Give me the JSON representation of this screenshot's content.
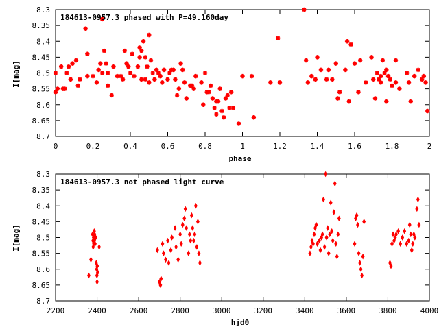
{
  "chart_data": [
    {
      "type": "scatter",
      "title": "184613-0957.3 phased with P=49.160day",
      "xlabel": "phase",
      "ylabel": "I[mag]",
      "xlim": [
        0,
        2
      ],
      "ylim": [
        8.7,
        8.3
      ],
      "y_inverted": true,
      "grid": false,
      "legend": "none",
      "marker": "star",
      "color": "#ff0000",
      "x_ticks": [
        "0",
        "0.2",
        "0.4",
        "0.6",
        "0.8",
        "1",
        "1.2",
        "1.4",
        "1.6",
        "1.8",
        "2"
      ],
      "y_ticks": [
        "8.3",
        "8.35",
        "8.4",
        "8.45",
        "8.5",
        "8.55",
        "8.6",
        "8.65",
        "8.7"
      ],
      "points": [
        [
          0.0,
          8.56
        ],
        [
          0.0,
          8.5
        ],
        [
          0.01,
          8.55
        ],
        [
          0.03,
          8.48
        ],
        [
          0.04,
          8.55
        ],
        [
          0.05,
          8.55
        ],
        [
          0.06,
          8.5
        ],
        [
          0.07,
          8.48
        ],
        [
          0.08,
          8.52
        ],
        [
          0.09,
          8.47
        ],
        [
          0.11,
          8.46
        ],
        [
          0.12,
          8.54
        ],
        [
          0.13,
          8.52
        ],
        [
          0.16,
          8.36
        ],
        [
          0.17,
          8.51
        ],
        [
          0.17,
          8.44
        ],
        [
          0.2,
          8.51
        ],
        [
          0.22,
          8.53
        ],
        [
          0.23,
          8.49
        ],
        [
          0.24,
          8.47
        ],
        [
          0.25,
          8.33
        ],
        [
          0.25,
          8.5
        ],
        [
          0.26,
          8.43
        ],
        [
          0.27,
          8.47
        ],
        [
          0.28,
          8.54
        ],
        [
          0.28,
          8.5
        ],
        [
          0.3,
          8.57
        ],
        [
          0.31,
          8.48
        ],
        [
          0.33,
          8.51
        ],
        [
          0.35,
          8.51
        ],
        [
          0.36,
          8.52
        ],
        [
          0.37,
          8.43
        ],
        [
          0.38,
          8.47
        ],
        [
          0.39,
          8.48
        ],
        [
          0.4,
          8.5
        ],
        [
          0.41,
          8.44
        ],
        [
          0.42,
          8.51
        ],
        [
          0.44,
          8.48
        ],
        [
          0.45,
          8.45
        ],
        [
          0.45,
          8.42
        ],
        [
          0.46,
          8.43
        ],
        [
          0.46,
          8.52
        ],
        [
          0.47,
          8.4
        ],
        [
          0.48,
          8.45
        ],
        [
          0.48,
          8.52
        ],
        [
          0.49,
          8.48
        ],
        [
          0.5,
          8.53
        ],
        [
          0.5,
          8.38
        ],
        [
          0.51,
          8.46
        ],
        [
          0.52,
          8.5
        ],
        [
          0.53,
          8.52
        ],
        [
          0.54,
          8.49
        ],
        [
          0.55,
          8.5
        ],
        [
          0.56,
          8.51
        ],
        [
          0.57,
          8.53
        ],
        [
          0.58,
          8.49
        ],
        [
          0.6,
          8.52
        ],
        [
          0.61,
          8.5
        ],
        [
          0.62,
          8.49
        ],
        [
          0.63,
          8.49
        ],
        [
          0.64,
          8.52
        ],
        [
          0.65,
          8.57
        ],
        [
          0.66,
          8.55
        ],
        [
          0.67,
          8.47
        ],
        [
          0.68,
          8.49
        ],
        [
          0.69,
          8.53
        ],
        [
          0.7,
          8.58
        ],
        [
          0.72,
          8.54
        ],
        [
          0.73,
          8.54
        ],
        [
          0.74,
          8.55
        ],
        [
          0.75,
          8.51
        ],
        [
          0.78,
          8.53
        ],
        [
          0.79,
          8.6
        ],
        [
          0.8,
          8.5
        ],
        [
          0.81,
          8.56
        ],
        [
          0.82,
          8.56
        ],
        [
          0.83,
          8.54
        ],
        [
          0.84,
          8.58
        ],
        [
          0.85,
          8.61
        ],
        [
          0.86,
          8.59
        ],
        [
          0.86,
          8.63
        ],
        [
          0.87,
          8.59
        ],
        [
          0.88,
          8.55
        ],
        [
          0.89,
          8.62
        ],
        [
          0.9,
          8.64
        ],
        [
          0.91,
          8.58
        ],
        [
          0.92,
          8.57
        ],
        [
          0.93,
          8.61
        ],
        [
          0.94,
          8.56
        ],
        [
          0.95,
          8.61
        ],
        [
          0.98,
          8.66
        ],
        [
          1.0,
          8.51
        ],
        [
          1.05,
          8.51
        ],
        [
          1.06,
          8.64
        ],
        [
          1.15,
          8.53
        ],
        [
          1.19,
          8.39
        ],
        [
          1.2,
          8.53
        ],
        [
          1.33,
          8.3
        ],
        [
          1.34,
          8.46
        ],
        [
          1.35,
          8.53
        ],
        [
          1.37,
          8.51
        ],
        [
          1.39,
          8.52
        ],
        [
          1.4,
          8.45
        ],
        [
          1.42,
          8.49
        ],
        [
          1.45,
          8.52
        ],
        [
          1.46,
          8.49
        ],
        [
          1.48,
          8.52
        ],
        [
          1.5,
          8.47
        ],
        [
          1.51,
          8.58
        ],
        [
          1.52,
          8.56
        ],
        [
          1.55,
          8.49
        ],
        [
          1.56,
          8.4
        ],
        [
          1.57,
          8.59
        ],
        [
          1.58,
          8.41
        ],
        [
          1.6,
          8.47
        ],
        [
          1.62,
          8.56
        ],
        [
          1.63,
          8.46
        ],
        [
          1.66,
          8.53
        ],
        [
          1.69,
          8.45
        ],
        [
          1.7,
          8.52
        ],
        [
          1.71,
          8.58
        ],
        [
          1.72,
          8.5
        ],
        [
          1.73,
          8.52
        ],
        [
          1.74,
          8.51
        ],
        [
          1.74,
          8.53
        ],
        [
          1.75,
          8.46
        ],
        [
          1.76,
          8.5
        ],
        [
          1.77,
          8.49
        ],
        [
          1.77,
          8.59
        ],
        [
          1.78,
          8.51
        ],
        [
          1.79,
          8.52
        ],
        [
          1.8,
          8.54
        ],
        [
          1.82,
          8.53
        ],
        [
          1.82,
          8.46
        ],
        [
          1.84,
          8.55
        ],
        [
          1.88,
          8.5
        ],
        [
          1.89,
          8.53
        ],
        [
          1.9,
          8.59
        ],
        [
          1.92,
          8.51
        ],
        [
          1.94,
          8.49
        ],
        [
          1.96,
          8.52
        ],
        [
          1.97,
          8.51
        ],
        [
          1.98,
          8.53
        ],
        [
          1.99,
          8.62
        ]
      ]
    },
    {
      "type": "scatter",
      "title": "184613-0957.3 not phased light curve",
      "xlabel": "hjd0",
      "ylabel": "I[mag]",
      "xlim": [
        2200,
        4000
      ],
      "ylim": [
        8.7,
        8.3
      ],
      "y_inverted": true,
      "grid": false,
      "legend": "none",
      "marker": "diamond",
      "color": "#ff0000",
      "x_ticks": [
        "2200",
        "2400",
        "2600",
        "2800",
        "3000",
        "3200",
        "3400",
        "3600",
        "3800",
        "4000"
      ],
      "y_ticks": [
        "8.3",
        "8.35",
        "8.4",
        "8.45",
        "8.5",
        "8.55",
        "8.6",
        "8.65",
        "8.7"
      ],
      "points": [
        [
          2360,
          8.62
        ],
        [
          2370,
          8.57
        ],
        [
          2378,
          8.49
        ],
        [
          2380,
          8.51
        ],
        [
          2381,
          8.53
        ],
        [
          2383,
          8.5
        ],
        [
          2384,
          8.52
        ],
        [
          2386,
          8.48
        ],
        [
          2387,
          8.51
        ],
        [
          2388,
          8.49
        ],
        [
          2390,
          8.52
        ],
        [
          2393,
          8.5
        ],
        [
          2396,
          8.58
        ],
        [
          2398,
          8.6
        ],
        [
          2399,
          8.62
        ],
        [
          2400,
          8.64
        ],
        [
          2401,
          8.59
        ],
        [
          2403,
          8.61
        ],
        [
          2410,
          8.53
        ],
        [
          2690,
          8.54
        ],
        [
          2700,
          8.64
        ],
        [
          2705,
          8.65
        ],
        [
          2708,
          8.63
        ],
        [
          2715,
          8.52
        ],
        [
          2720,
          8.55
        ],
        [
          2730,
          8.57
        ],
        [
          2740,
          8.51
        ],
        [
          2745,
          8.58
        ],
        [
          2755,
          8.54
        ],
        [
          2760,
          8.5
        ],
        [
          2775,
          8.47
        ],
        [
          2780,
          8.53
        ],
        [
          2790,
          8.57
        ],
        [
          2800,
          8.49
        ],
        [
          2805,
          8.52
        ],
        [
          2812,
          8.46
        ],
        [
          2820,
          8.44
        ],
        [
          2825,
          8.41
        ],
        [
          2830,
          8.47
        ],
        [
          2840,
          8.55
        ],
        [
          2845,
          8.49
        ],
        [
          2850,
          8.51
        ],
        [
          2855,
          8.43
        ],
        [
          2860,
          8.47
        ],
        [
          2865,
          8.51
        ],
        [
          2870,
          8.49
        ],
        [
          2875,
          8.4
        ],
        [
          2880,
          8.53
        ],
        [
          2885,
          8.45
        ],
        [
          2890,
          8.55
        ],
        [
          2895,
          8.58
        ],
        [
          3425,
          8.55
        ],
        [
          3430,
          8.53
        ],
        [
          3435,
          8.51
        ],
        [
          3440,
          8.52
        ],
        [
          3445,
          8.49
        ],
        [
          3450,
          8.47
        ],
        [
          3455,
          8.46
        ],
        [
          3460,
          8.52
        ],
        [
          3470,
          8.51
        ],
        [
          3475,
          8.54
        ],
        [
          3480,
          8.5
        ],
        [
          3485,
          8.49
        ],
        [
          3490,
          8.38
        ],
        [
          3495,
          8.53
        ],
        [
          3500,
          8.3
        ],
        [
          3505,
          8.5
        ],
        [
          3510,
          8.47
        ],
        [
          3515,
          8.55
        ],
        [
          3520,
          8.49
        ],
        [
          3525,
          8.39
        ],
        [
          3530,
          8.48
        ],
        [
          3535,
          8.51
        ],
        [
          3540,
          8.42
        ],
        [
          3545,
          8.33
        ],
        [
          3550,
          8.52
        ],
        [
          3555,
          8.56
        ],
        [
          3560,
          8.49
        ],
        [
          3565,
          8.44
        ],
        [
          3640,
          8.52
        ],
        [
          3645,
          8.44
        ],
        [
          3650,
          8.43
        ],
        [
          3655,
          8.46
        ],
        [
          3660,
          8.55
        ],
        [
          3665,
          8.58
        ],
        [
          3670,
          8.6
        ],
        [
          3675,
          8.62
        ],
        [
          3680,
          8.56
        ],
        [
          3685,
          8.45
        ],
        [
          3810,
          8.58
        ],
        [
          3815,
          8.59
        ],
        [
          3820,
          8.52
        ],
        [
          3825,
          8.49
        ],
        [
          3830,
          8.51
        ],
        [
          3835,
          8.5
        ],
        [
          3840,
          8.49
        ],
        [
          3850,
          8.48
        ],
        [
          3860,
          8.52
        ],
        [
          3870,
          8.5
        ],
        [
          3880,
          8.48
        ],
        [
          3890,
          8.52
        ],
        [
          3900,
          8.51
        ],
        [
          3905,
          8.46
        ],
        [
          3910,
          8.49
        ],
        [
          3915,
          8.54
        ],
        [
          3920,
          8.52
        ],
        [
          3925,
          8.49
        ],
        [
          3930,
          8.5
        ],
        [
          3940,
          8.41
        ],
        [
          3945,
          8.38
        ],
        [
          3950,
          8.46
        ]
      ]
    }
  ]
}
